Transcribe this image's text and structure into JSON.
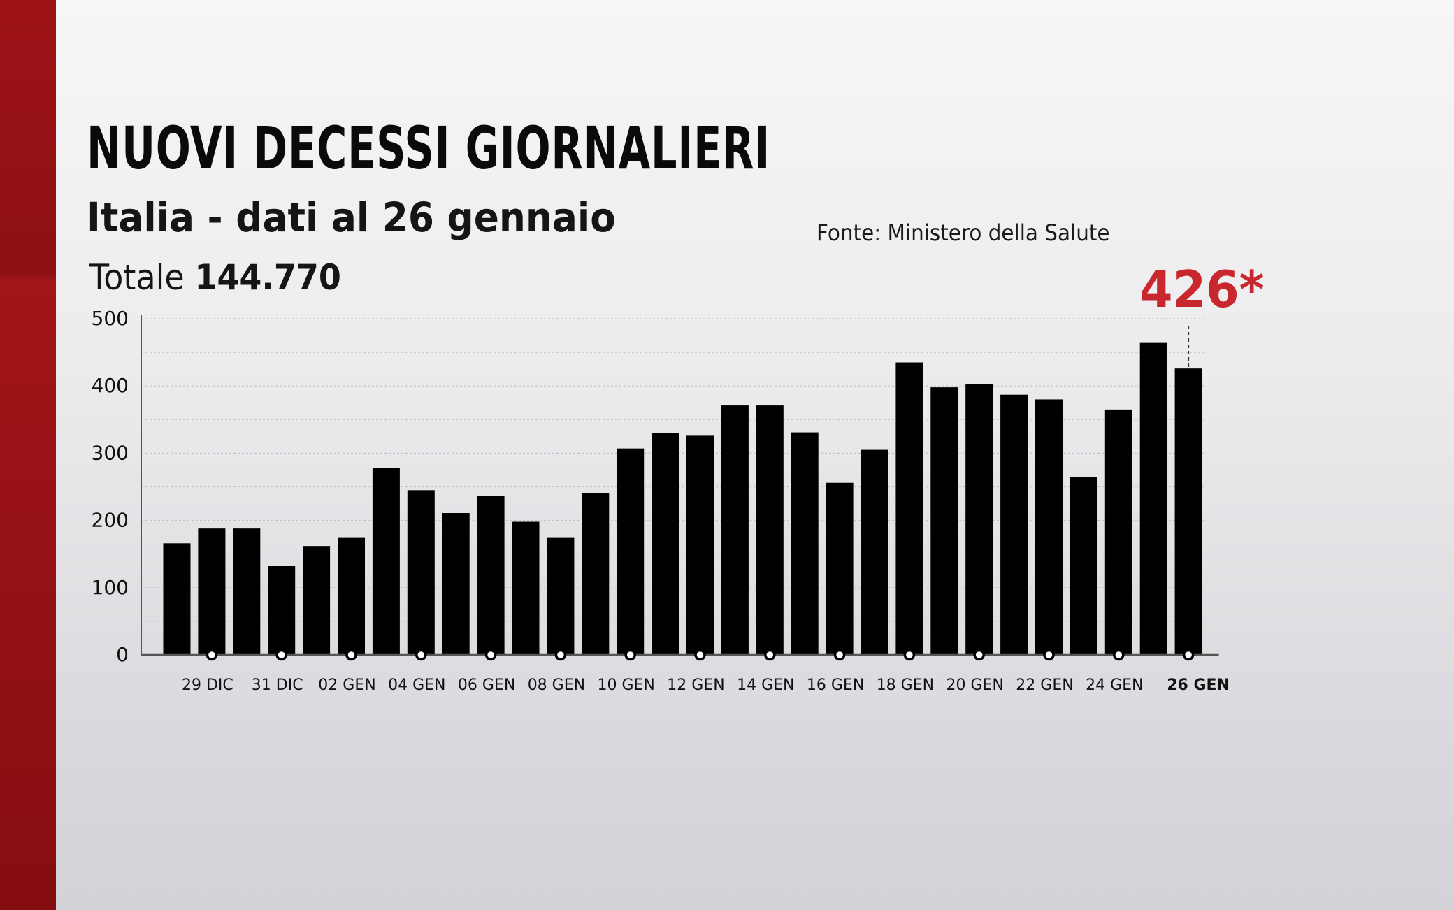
{
  "header": {
    "title": "NUOVI DECESSI GIORNALIERI",
    "subtitle": "Italia - dati al 26 gennaio",
    "total_label": "Totale",
    "total_value": "144.770",
    "source": "Fonte: Ministero della Salute",
    "highlight": "426*"
  },
  "colors": {
    "bar": "#000000",
    "highlight": "#c8272d",
    "band": "#9e1316"
  },
  "chart_data": {
    "type": "bar",
    "ylim": [
      0,
      500
    ],
    "yticks": [
      0,
      100,
      200,
      300,
      400,
      500
    ],
    "grid": true,
    "categories": [
      "28 DIC",
      "29 DIC",
      "30 DIC",
      "31 DIC",
      "01 GEN",
      "02 GEN",
      "03 GEN",
      "04 GEN",
      "05 GEN",
      "06 GEN",
      "07 GEN",
      "08 GEN",
      "09 GEN",
      "10 GEN",
      "11 GEN",
      "12 GEN",
      "13 GEN",
      "14 GEN",
      "15 GEN",
      "16 GEN",
      "17 GEN",
      "18 GEN",
      "19 GEN",
      "20 GEN",
      "21 GEN",
      "22 GEN",
      "23 GEN",
      "24 GEN",
      "25 GEN",
      "26 GEN"
    ],
    "tick_labels": [
      "29 DIC",
      "31 DIC",
      "02 GEN",
      "04 GEN",
      "06 GEN",
      "08 GEN",
      "10 GEN",
      "12 GEN",
      "14 GEN",
      "16 GEN",
      "18 GEN",
      "20 GEN",
      "22 GEN",
      "24 GEN",
      "26 GEN"
    ],
    "values": [
      166,
      188,
      188,
      132,
      162,
      174,
      278,
      245,
      211,
      237,
      198,
      174,
      241,
      307,
      330,
      326,
      371,
      371,
      331,
      256,
      305,
      435,
      398,
      403,
      387,
      380,
      265,
      365,
      464,
      426
    ],
    "highlight_value": "426*",
    "highlight_category": "26 GEN"
  }
}
